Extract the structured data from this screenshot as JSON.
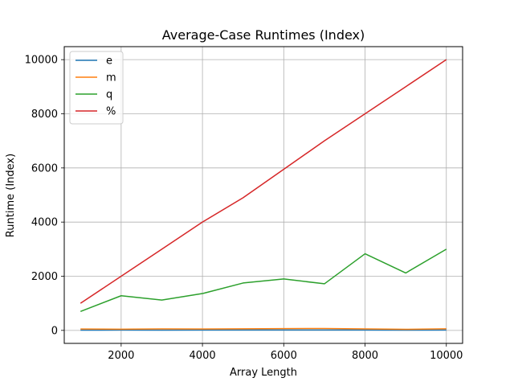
{
  "chart_data": {
    "type": "line",
    "title": "Average-Case Runtimes (Index)",
    "xlabel": "Array Length",
    "ylabel": "Runtime (Index)",
    "x": [
      1000,
      2000,
      3000,
      4000,
      5000,
      6000,
      7000,
      8000,
      9000,
      10000
    ],
    "xlim": [
      600,
      10400
    ],
    "ylim": [
      -480,
      10480
    ],
    "xticks": [
      2000,
      4000,
      6000,
      8000,
      10000
    ],
    "yticks": [
      0,
      2000,
      4000,
      6000,
      8000,
      10000
    ],
    "grid": true,
    "legend_position": "top-left",
    "series": [
      {
        "name": "e",
        "color": "#1f77b4",
        "values": [
          10,
          12,
          11,
          13,
          12,
          14,
          13,
          12,
          11,
          13
        ]
      },
      {
        "name": "m",
        "color": "#ff7f0e",
        "values": [
          50,
          45,
          55,
          50,
          60,
          65,
          70,
          55,
          40,
          60
        ]
      },
      {
        "name": "q",
        "color": "#2ca02c",
        "values": [
          700,
          1280,
          1120,
          1360,
          1750,
          1900,
          1720,
          2830,
          2120,
          3000
        ]
      },
      {
        "name": "%",
        "color": "#d62728",
        "values": [
          1000,
          2000,
          3000,
          4000,
          4900,
          5950,
          7000,
          8000,
          9000,
          10000
        ]
      }
    ]
  }
}
